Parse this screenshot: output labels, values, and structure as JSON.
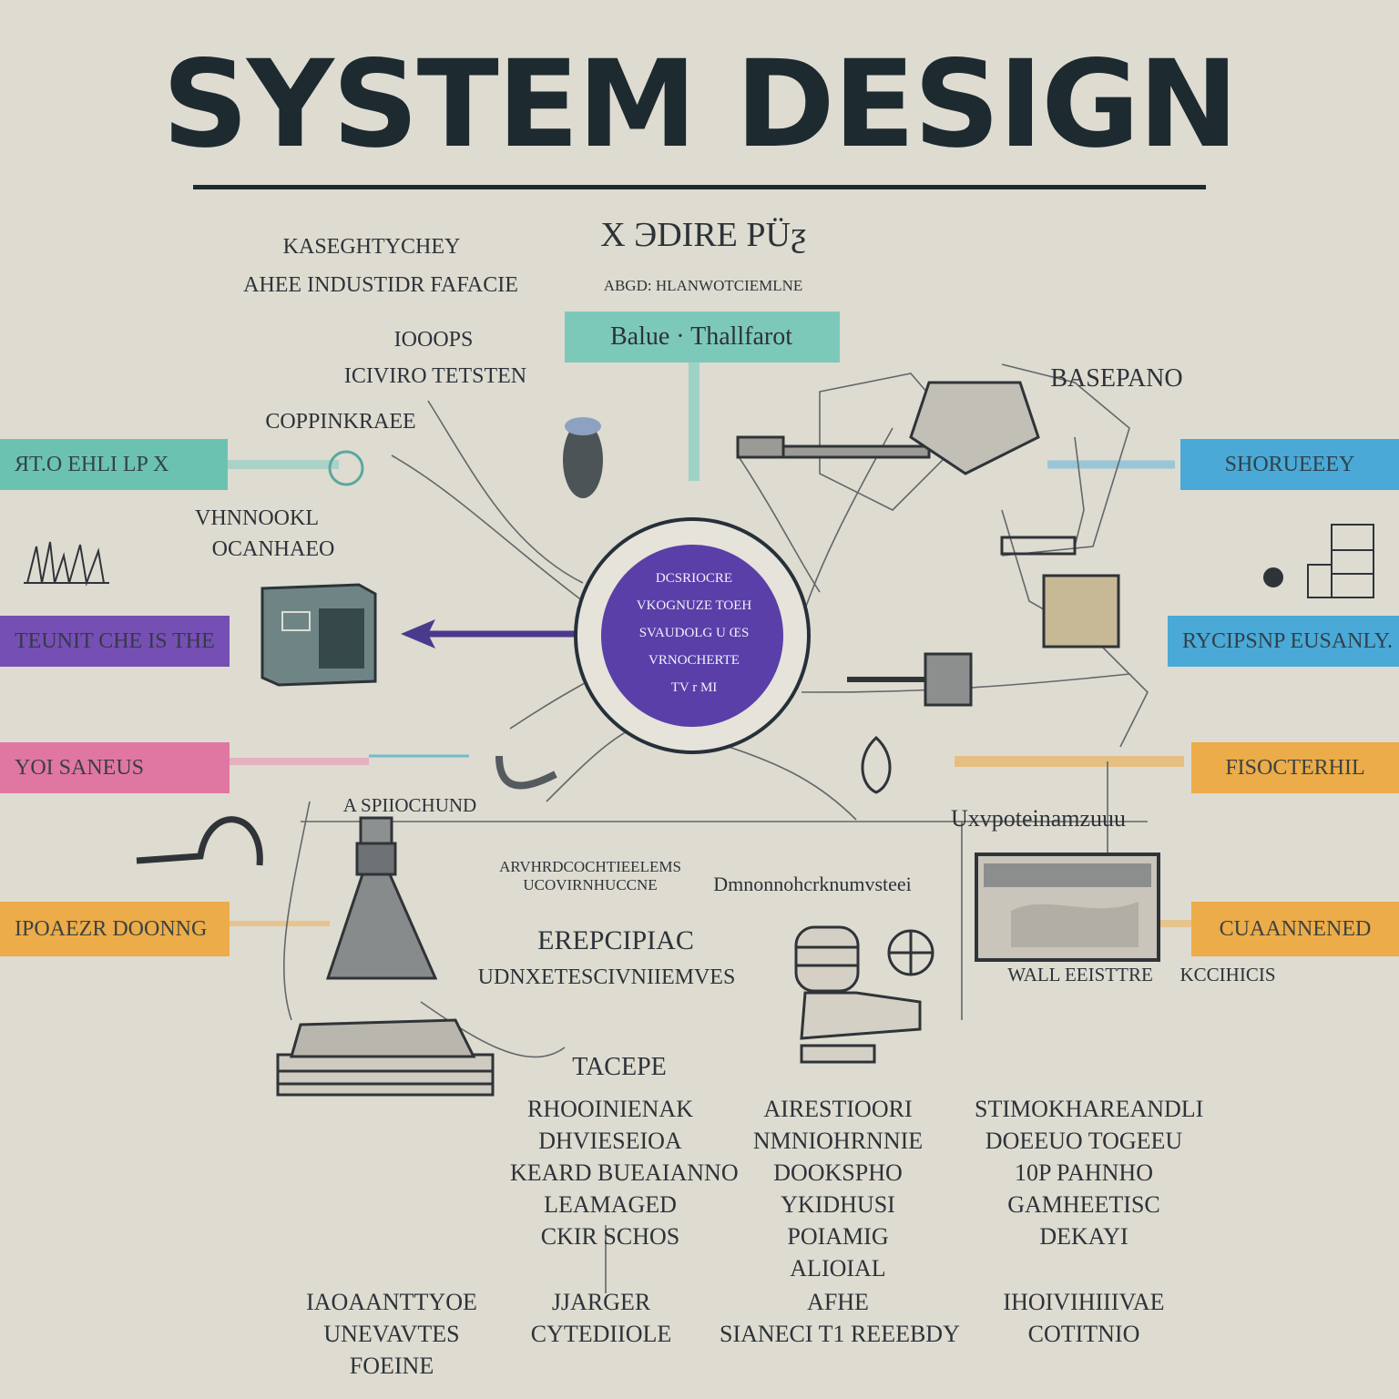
{
  "title": "SYSTEM DESIGN",
  "colors": {
    "ink": "#1d2a30",
    "paper": "#dedbd1",
    "teal": "#5fbfad",
    "blue": "#3aa3d6",
    "purple": "#6a3fb0",
    "pink": "#e06b9c",
    "orange": "#eda63a",
    "hub": "#5a3fa8"
  },
  "top": {
    "center_heading": "X ЭDIRE PÜƺ",
    "center_sub": "ABGD: HLANWOTCIEMLNE",
    "center_tag": "Balue · Thallfarot",
    "left_block": [
      "KASEGHTYCHEY",
      "AHEE INDUSTIDR FAFACIE"
    ],
    "left_mid": [
      "IOOOPS",
      "ICIVIRO TETSTEN"
    ],
    "left_low": "COPPINKRAEE",
    "right_label": "BASEPANO"
  },
  "left_tags": [
    {
      "label": "ЯT.O EHLI LP X",
      "color": "teal"
    },
    {
      "label": "TEUNIT CHE IS THE",
      "color": "purple"
    },
    {
      "label": "YOI SANEUS",
      "color": "pink"
    },
    {
      "label": "IPOAEZR DOONNG",
      "color": "orange"
    }
  ],
  "right_tags": [
    {
      "label": "SHORUEEEY",
      "color": "blue"
    },
    {
      "label": "RYCIPSNP EUSANLY.",
      "color": "blue"
    },
    {
      "label": "FISOCTERHIL",
      "color": "orange"
    },
    {
      "label": "CUAANNENED",
      "color": "orange"
    }
  ],
  "left_side": {
    "vhn_label": [
      "VHNNOOKL",
      "OCANHAEO"
    ],
    "sp_label": "A SPIIOCHUND"
  },
  "hub": {
    "lines": [
      "DCSRIOCRE",
      "VKOGNUZE TOEH",
      "SVAUDOLG U ŒS",
      "VRNOCHERTE",
      "TV r MI"
    ]
  },
  "middle": {
    "long_label": "Dmnonnohcrknumvsteei",
    "small_block": [
      "ARVHRDCOCHTIEELEMS",
      "UCOVIRNHUCCNE"
    ],
    "eprc": "EREPCIPIAC",
    "eprc_sub": "UDNXETESCIVNIIEMVES",
    "right_caption": "Uxvpoteinamzuuu",
    "wall_label": "WALL EEISTTRE",
    "kc_label": "KCCIHICIS"
  },
  "columns": [
    {
      "head": "TACEPE",
      "lines": [
        "RHOOINIENAK",
        "DHVIESEIOA",
        "KEARD BUEAIANNO",
        "LEAMAGED",
        "CKIR SCHOS"
      ]
    },
    {
      "head": "",
      "lines": [
        "AIRESTIOORI",
        "NMNIOHRNNIE",
        "DOOKSPHO",
        "YKIDHUSI",
        "POIAMIG",
        "ALIOIAL"
      ]
    },
    {
      "head": "",
      "lines": [
        "STIMOKHAREANDLI",
        "DOEEUO TOGEEU",
        "10P PAHNHO",
        "GAMHEETISC",
        "DEKAYI"
      ]
    }
  ],
  "footer": [
    {
      "lines": [
        "IAOAANTTYOE",
        "UNEVAVTES",
        "FOEINE"
      ]
    },
    {
      "lines": [
        "JJARGER",
        "CYTEDIIOLE"
      ]
    },
    {
      "lines": [
        "AFHE",
        "SIANECI T1 REEEBDY"
      ]
    },
    {
      "lines": [
        "IHOIVIHIIIVAE",
        "COTITNIO"
      ]
    }
  ]
}
